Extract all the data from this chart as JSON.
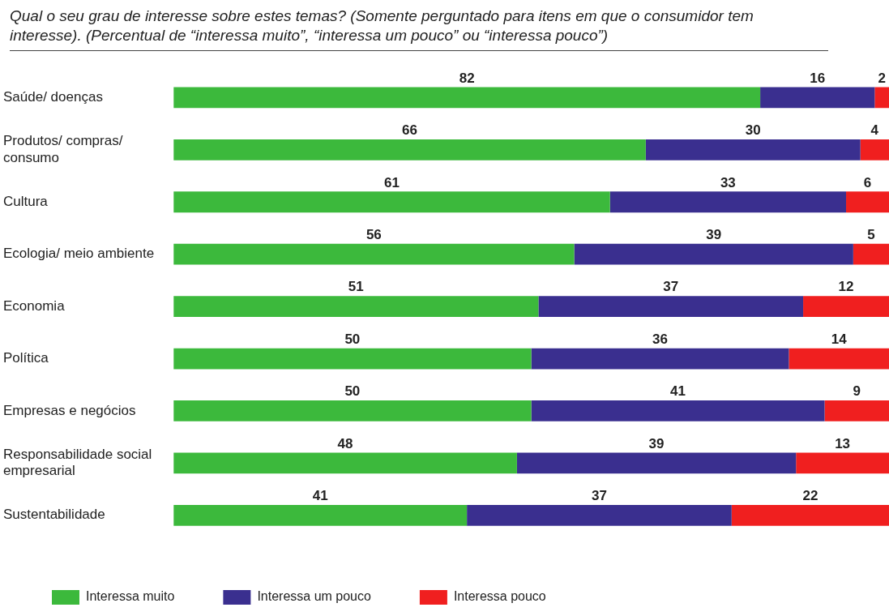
{
  "chart_data": {
    "type": "bar",
    "orientation": "horizontal",
    "stacked": true,
    "title": "Qual o seu grau de interesse sobre estes temas? (Somente perguntado para itens em que o consumidor tem interesse). (Percentual de “interessa muito”, “interessa um pouco” ou “interessa pouco”)",
    "categories": [
      "Saúde/ doenças",
      "Produtos/ compras/ consumo",
      "Cultura",
      "Ecologia/ meio ambiente",
      "Economia",
      "Política",
      "Empresas e negócios",
      "Responsabilidade social empresarial",
      "Sustentabilidade"
    ],
    "series": [
      {
        "name": "Interessa muito",
        "color": "#3cb93c",
        "values": [
          82,
          66,
          61,
          56,
          51,
          50,
          50,
          48,
          41
        ]
      },
      {
        "name": "Interessa um pouco",
        "color": "#3a2f8f",
        "values": [
          16,
          30,
          33,
          39,
          37,
          36,
          41,
          39,
          37
        ]
      },
      {
        "name": "Interessa pouco",
        "color": "#f01f1f",
        "values": [
          2,
          4,
          6,
          5,
          12,
          14,
          9,
          13,
          22
        ]
      }
    ],
    "tick_labels": "y",
    "data_labels": true,
    "legend": "bottom"
  }
}
